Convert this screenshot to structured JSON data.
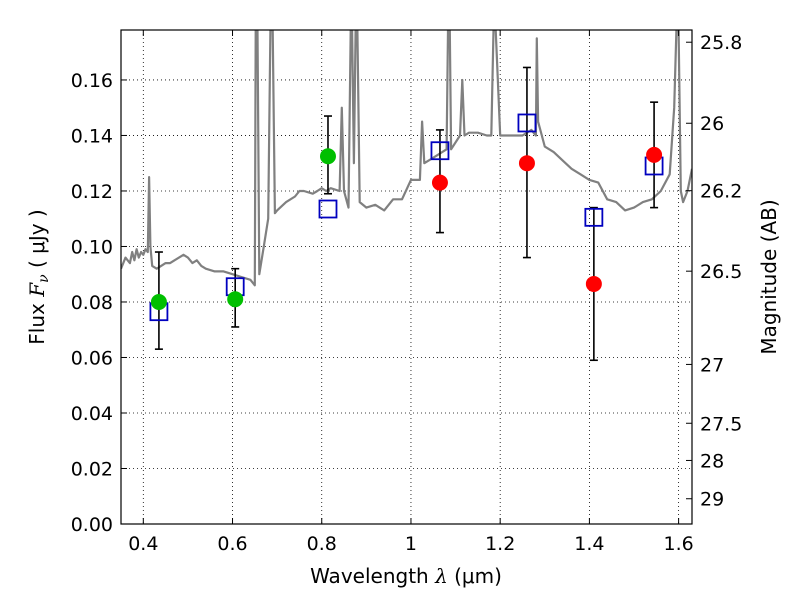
{
  "chart_data": {
    "type": "scatter",
    "title": "",
    "xlabel": {
      "prefix": "Wavelength  ",
      "symbol": "λ",
      "unit": "(μm)"
    },
    "ylabel": {
      "prefix": "Flux  ",
      "symbol": "F",
      "subscript": "ν",
      "unit": " ( μJy )"
    },
    "y2label": "Magnitude (AB)",
    "xlim": [
      0.35,
      1.63
    ],
    "ylim": [
      0.0,
      0.178
    ],
    "grid": true,
    "grid_style": "dotted",
    "xticks": [
      0.4,
      0.6,
      0.8,
      1.0,
      1.2,
      1.4,
      1.6
    ],
    "xtick_labels": [
      "0.4",
      "0.6",
      "0.8",
      "1",
      "1.2",
      "1.4",
      "1.6"
    ],
    "yticks": [
      0.0,
      0.02,
      0.04,
      0.06,
      0.08,
      0.1,
      0.12,
      0.14,
      0.16
    ],
    "ytick_labels": [
      "0.00",
      "0.02",
      "0.04",
      "0.06",
      "0.08",
      "0.10",
      "0.12",
      "0.14",
      "0.16"
    ],
    "y2ticks": [
      {
        "label": "25.8",
        "flux": 0.1736
      },
      {
        "label": "26",
        "flux": 0.1444
      },
      {
        "label": "26.2",
        "flux": 0.1201
      },
      {
        "label": "26.5",
        "flux": 0.0911
      },
      {
        "label": "27",
        "flux": 0.0575
      },
      {
        "label": "27.5",
        "flux": 0.0363
      },
      {
        "label": "28",
        "flux": 0.0229
      },
      {
        "label": "29",
        "flux": 0.0091
      }
    ],
    "colors": {
      "model": "#808080",
      "green": "#00bf00",
      "red": "#ff0000",
      "square": "#0000bf",
      "errorbar": "#000000"
    },
    "series": [
      {
        "kind": "line",
        "points": [
          [
            0.35,
            0.092
          ],
          [
            0.36,
            0.096
          ],
          [
            0.37,
            0.094
          ],
          [
            0.375,
            0.098
          ],
          [
            0.38,
            0.095
          ],
          [
            0.385,
            0.099
          ],
          [
            0.39,
            0.096
          ],
          [
            0.395,
            0.098
          ],
          [
            0.4,
            0.097
          ],
          [
            0.405,
            0.099
          ],
          [
            0.41,
            0.098
          ],
          [
            0.413,
            0.125
          ],
          [
            0.416,
            0.1
          ],
          [
            0.42,
            0.093
          ],
          [
            0.43,
            0.092
          ],
          [
            0.44,
            0.093
          ],
          [
            0.45,
            0.094
          ],
          [
            0.46,
            0.094
          ],
          [
            0.47,
            0.095
          ],
          [
            0.48,
            0.096
          ],
          [
            0.49,
            0.097
          ],
          [
            0.5,
            0.096
          ],
          [
            0.51,
            0.094
          ],
          [
            0.52,
            0.095
          ],
          [
            0.53,
            0.093
          ],
          [
            0.54,
            0.092
          ],
          [
            0.56,
            0.091
          ],
          [
            0.58,
            0.091
          ],
          [
            0.6,
            0.09
          ],
          [
            0.62,
            0.089
          ],
          [
            0.64,
            0.088
          ],
          [
            0.65,
            0.086
          ],
          [
            0.652,
            0.178
          ],
          [
            0.656,
            0.178
          ],
          [
            0.66,
            0.09
          ],
          [
            0.67,
            0.1
          ],
          [
            0.675,
            0.105
          ],
          [
            0.68,
            0.11
          ],
          [
            0.685,
            0.178
          ],
          [
            0.69,
            0.178
          ],
          [
            0.695,
            0.112
          ],
          [
            0.7,
            0.113
          ],
          [
            0.72,
            0.116
          ],
          [
            0.74,
            0.118
          ],
          [
            0.75,
            0.12
          ],
          [
            0.76,
            0.12
          ],
          [
            0.78,
            0.119
          ],
          [
            0.79,
            0.12
          ],
          [
            0.8,
            0.121
          ],
          [
            0.81,
            0.12
          ],
          [
            0.82,
            0.121
          ],
          [
            0.84,
            0.12
          ],
          [
            0.845,
            0.15
          ],
          [
            0.85,
            0.12
          ],
          [
            0.86,
            0.114
          ],
          [
            0.865,
            0.178
          ],
          [
            0.868,
            0.178
          ],
          [
            0.872,
            0.13
          ],
          [
            0.876,
            0.178
          ],
          [
            0.88,
            0.178
          ],
          [
            0.885,
            0.116
          ],
          [
            0.9,
            0.114
          ],
          [
            0.92,
            0.115
          ],
          [
            0.94,
            0.113
          ],
          [
            0.96,
            0.117
          ],
          [
            0.98,
            0.117
          ],
          [
            1.0,
            0.124
          ],
          [
            1.02,
            0.124
          ],
          [
            1.025,
            0.145
          ],
          [
            1.03,
            0.13
          ],
          [
            1.05,
            0.132
          ],
          [
            1.06,
            0.133
          ],
          [
            1.07,
            0.134
          ],
          [
            1.08,
            0.135
          ],
          [
            1.083,
            0.178
          ],
          [
            1.087,
            0.178
          ],
          [
            1.09,
            0.135
          ],
          [
            1.11,
            0.14
          ],
          [
            1.115,
            0.16
          ],
          [
            1.12,
            0.14
          ],
          [
            1.13,
            0.141
          ],
          [
            1.15,
            0.141
          ],
          [
            1.17,
            0.14
          ],
          [
            1.18,
            0.14
          ],
          [
            1.185,
            0.178
          ],
          [
            1.19,
            0.178
          ],
          [
            1.2,
            0.14
          ],
          [
            1.22,
            0.14
          ],
          [
            1.23,
            0.14
          ],
          [
            1.24,
            0.14
          ],
          [
            1.25,
            0.14
          ],
          [
            1.27,
            0.142
          ],
          [
            1.28,
            0.14
          ],
          [
            1.282,
            0.175
          ],
          [
            1.285,
            0.145
          ],
          [
            1.3,
            0.136
          ],
          [
            1.32,
            0.134
          ],
          [
            1.34,
            0.131
          ],
          [
            1.36,
            0.128
          ],
          [
            1.38,
            0.126
          ],
          [
            1.4,
            0.124
          ],
          [
            1.42,
            0.123
          ],
          [
            1.44,
            0.117
          ],
          [
            1.46,
            0.116
          ],
          [
            1.48,
            0.113
          ],
          [
            1.5,
            0.114
          ],
          [
            1.52,
            0.116
          ],
          [
            1.54,
            0.117
          ],
          [
            1.56,
            0.12
          ],
          [
            1.58,
            0.126
          ],
          [
            1.59,
            0.15
          ],
          [
            1.595,
            0.178
          ],
          [
            1.6,
            0.178
          ],
          [
            1.605,
            0.12
          ],
          [
            1.61,
            0.116
          ],
          [
            1.62,
            0.12
          ],
          [
            1.63,
            0.128
          ]
        ]
      },
      {
        "kind": "errorbar-circles",
        "points": [
          {
            "x": 0.435,
            "y": 0.08,
            "err_low": 0.017,
            "err_high": 0.018,
            "color": "green"
          },
          {
            "x": 0.606,
            "y": 0.081,
            "err_low": 0.01,
            "err_high": 0.011,
            "color": "green"
          },
          {
            "x": 0.814,
            "y": 0.1325,
            "err_low": 0.0135,
            "err_high": 0.0145,
            "color": "green"
          },
          {
            "x": 1.065,
            "y": 0.123,
            "err_low": 0.018,
            "err_high": 0.019,
            "color": "red"
          },
          {
            "x": 1.26,
            "y": 0.13,
            "err_low": 0.034,
            "err_high": 0.0345,
            "color": "red"
          },
          {
            "x": 1.41,
            "y": 0.0865,
            "err_low": 0.0275,
            "err_high": 0.0275,
            "color": "red"
          },
          {
            "x": 1.545,
            "y": 0.133,
            "err_low": 0.019,
            "err_high": 0.019,
            "color": "red"
          }
        ]
      },
      {
        "kind": "open-squares",
        "points": [
          {
            "x": 0.435,
            "y": 0.0765
          },
          {
            "x": 0.606,
            "y": 0.0855
          },
          {
            "x": 0.814,
            "y": 0.1135
          },
          {
            "x": 1.065,
            "y": 0.1345
          },
          {
            "x": 1.26,
            "y": 0.1445
          },
          {
            "x": 1.41,
            "y": 0.1105
          },
          {
            "x": 1.545,
            "y": 0.129
          }
        ]
      }
    ]
  }
}
